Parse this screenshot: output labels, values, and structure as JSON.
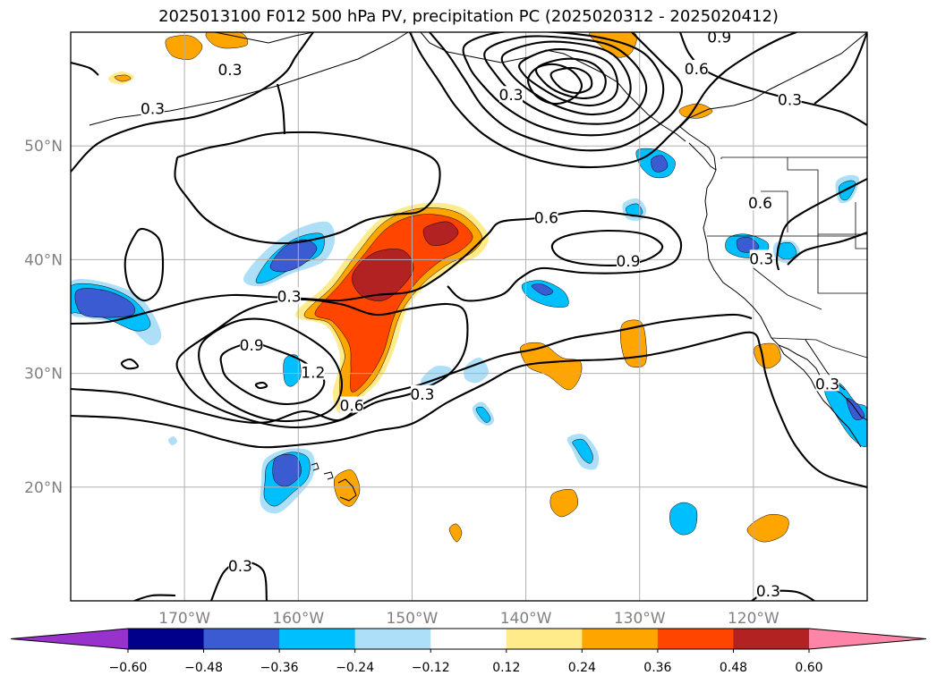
{
  "title": "2025013100 F012 500 hPa PV, precipitation PC (2025020312 - 2025020412)",
  "chart_data": {
    "type": "map",
    "projection": "plate carree",
    "lon_range": [
      -180,
      -110
    ],
    "lat_range": [
      10,
      60
    ],
    "grid": true,
    "x_ticks": [
      {
        "value": -170,
        "label": "170°W"
      },
      {
        "value": -160,
        "label": "160°W"
      },
      {
        "value": -150,
        "label": "150°W"
      },
      {
        "value": -140,
        "label": "140°W"
      },
      {
        "value": -130,
        "label": "130°W"
      },
      {
        "value": -120,
        "label": "120°W"
      }
    ],
    "y_ticks": [
      {
        "value": 20,
        "label": "20°N"
      },
      {
        "value": 30,
        "label": "30°N"
      },
      {
        "value": 40,
        "label": "40°N"
      },
      {
        "value": 50,
        "label": "50°N"
      }
    ],
    "colorbar": {
      "extend": "both",
      "bounds": [
        -0.6,
        -0.48,
        -0.36,
        -0.24,
        -0.12,
        0.12,
        0.24,
        0.36,
        0.48,
        0.6
      ],
      "tick_labels": [
        "−0.60",
        "−0.48",
        "−0.36",
        "−0.24",
        "−0.12",
        "0.12",
        "0.24",
        "0.36",
        "0.48",
        "0.60"
      ],
      "colors": [
        "#9932CC",
        "#00008B",
        "#3A5BD1",
        "#00BFFF",
        "#ADE0F8",
        "#FFFFFF",
        "#FFEB8A",
        "#FFA500",
        "#FF4500",
        "#B22222",
        "#FF85A8"
      ]
    },
    "pv_contour_labels": [
      {
        "text": "0.3",
        "lon": -166,
        "lat": 56.6
      },
      {
        "text": "0.3",
        "lon": -172.8,
        "lat": 53.2
      },
      {
        "text": "0.3",
        "lon": -160.8,
        "lat": 36.7
      },
      {
        "text": "0.9",
        "lon": -164.1,
        "lat": 32.4
      },
      {
        "text": "1.2",
        "lon": -158.7,
        "lat": 30.0
      },
      {
        "text": "0.6",
        "lon": -155.3,
        "lat": 27.1
      },
      {
        "text": "0.3",
        "lon": -149.1,
        "lat": 28.1
      },
      {
        "text": "0.6",
        "lon": -138.2,
        "lat": 43.6
      },
      {
        "text": "0.9",
        "lon": -131.0,
        "lat": 39.8
      },
      {
        "text": "0.3",
        "lon": -141.3,
        "lat": 54.4
      },
      {
        "text": "0.6",
        "lon": -125.0,
        "lat": 56.7
      },
      {
        "text": "0.9",
        "lon": -123.0,
        "lat": 59.5
      },
      {
        "text": "0.3",
        "lon": -116.8,
        "lat": 54.0
      },
      {
        "text": "0.6",
        "lon": -119.4,
        "lat": 44.9
      },
      {
        "text": "0.3",
        "lon": -119.3,
        "lat": 40.0
      },
      {
        "text": "0.3",
        "lon": -113.5,
        "lat": 29.0
      },
      {
        "text": "0.3",
        "lon": -165.1,
        "lat": 13.0
      },
      {
        "text": "0.3",
        "lon": -118.7,
        "lat": 10.8
      }
    ],
    "precipitation_pc_regions": [
      {
        "level": 0.48,
        "center_lon": -151.3,
        "center_lat": 38.3,
        "note": "main positive band"
      },
      {
        "level": 0.48,
        "center_lon": -148.5,
        "center_lat": 42.2
      },
      {
        "level": 0.36,
        "center_lon": -152.0,
        "center_lat": 35.0
      },
      {
        "level": 0.24,
        "center_lon": -130.5,
        "center_lat": 31.5
      },
      {
        "level": 0.24,
        "center_lon": -136.5,
        "center_lat": 31.0
      },
      {
        "level": 0.24,
        "center_lon": -155.0,
        "center_lat": 20.0
      },
      {
        "level": 0.24,
        "center_lon": -120.0,
        "center_lat": 16.0
      },
      {
        "level": 0.24,
        "center_lon": -137.0,
        "center_lat": 18.5
      },
      {
        "level": 0.24,
        "center_lon": -121.0,
        "center_lat": 31.5
      },
      {
        "level": 0.24,
        "center_lon": -146.0,
        "center_lat": 16.0
      },
      {
        "level": 0.24,
        "center_lon": -170.0,
        "center_lat": 59.1
      },
      {
        "level": 0.24,
        "center_lon": -134.0,
        "center_lat": 59.5
      },
      {
        "level": -0.48,
        "center_lon": -159.5,
        "center_lat": 40.5
      },
      {
        "level": -0.48,
        "center_lon": -175.5,
        "center_lat": 36.5
      },
      {
        "level": -0.48,
        "center_lon": -160.5,
        "center_lat": 22.0
      },
      {
        "level": -0.36,
        "center_lon": -160.0,
        "center_lat": 30.5
      },
      {
        "level": -0.36,
        "center_lon": -140.0,
        "center_lat": 37.2
      },
      {
        "level": -0.36,
        "center_lon": -127.0,
        "center_lat": 17.3
      },
      {
        "level": -0.36,
        "center_lon": -121.5,
        "center_lat": 40.8
      },
      {
        "level": -0.36,
        "center_lon": -113.0,
        "center_lat": 26.0
      },
      {
        "level": -0.36,
        "center_lon": -128.0,
        "center_lat": 48.8
      },
      {
        "level": -0.24,
        "center_lon": -136.0,
        "center_lat": 23.0
      },
      {
        "level": -0.24,
        "center_lon": -144.0,
        "center_lat": 24.7
      },
      {
        "level": -0.24,
        "center_lon": -145.0,
        "center_lat": 30.2
      }
    ]
  }
}
